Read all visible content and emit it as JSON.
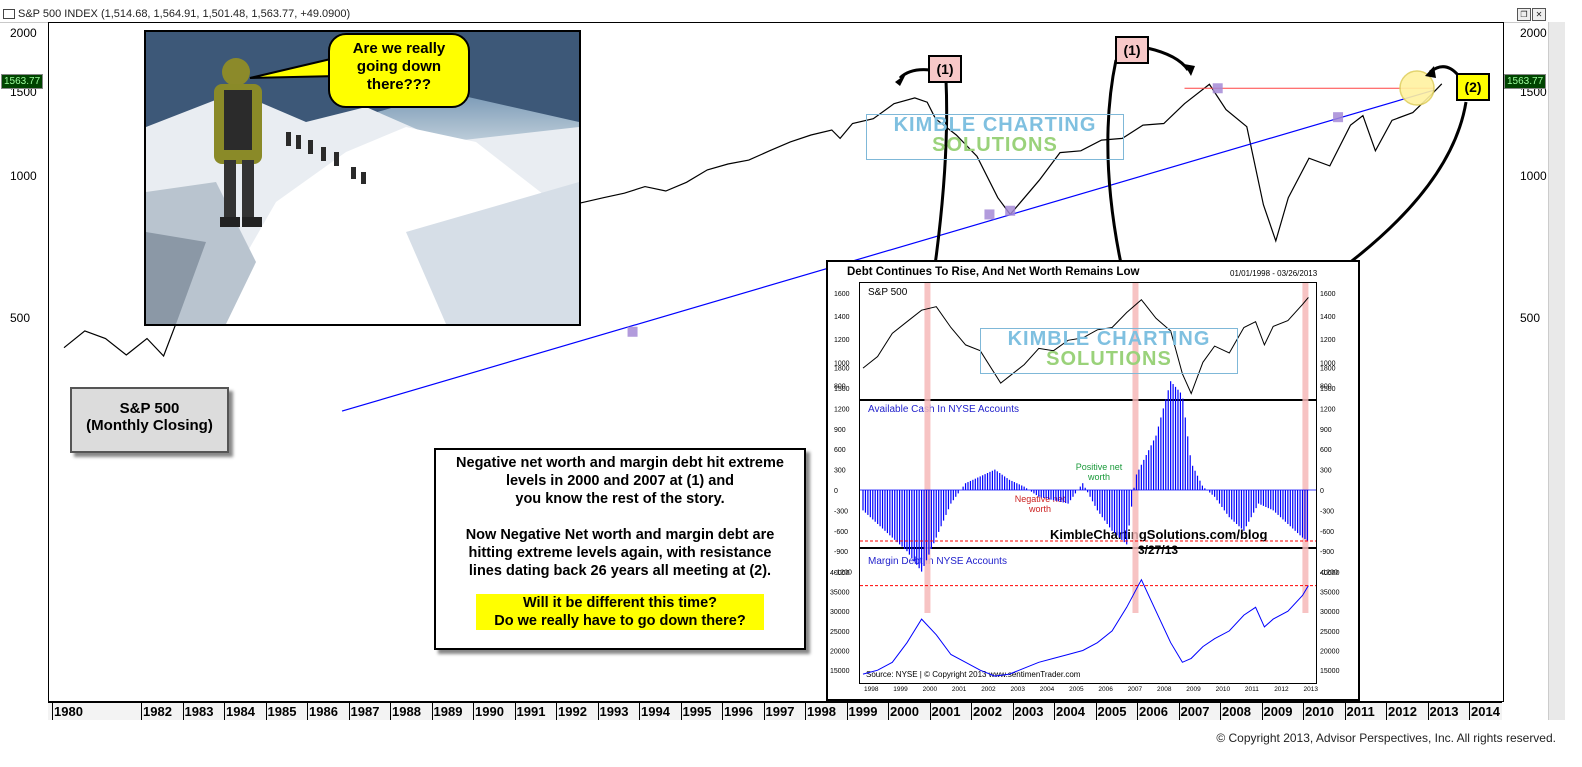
{
  "window": {
    "title": "S&P 500 INDEX (1,514.68, 1,564.91, 1,501.48, 1,563.77, +49.0900)",
    "last_price": "1563.77",
    "buttons": [
      "restore-icon",
      "close-icon"
    ]
  },
  "chart_data": [
    {
      "type": "line",
      "title": "",
      "series": [
        {
          "name": "",
          "values": [
            [
              1980.0,
              435
            ],
            [
              1980.5,
              472
            ],
            [
              1981.0,
              455
            ],
            [
              1981.5,
              420
            ],
            [
              1982.0,
              455
            ],
            [
              1982.4,
              418
            ],
            [
              1982.7,
              490
            ],
            [
              1983.0,
              520
            ],
            [
              1983.5,
              545
            ],
            [
              1984.0,
              520
            ],
            [
              1984.5,
              520
            ],
            [
              1985.0,
              560
            ],
            [
              1985.5,
              600
            ],
            [
              1986.0,
              640
            ],
            [
              1986.5,
              680
            ],
            [
              1987.0,
              710
            ],
            [
              1987.6,
              720
            ],
            [
              1987.8,
              645
            ],
            [
              1988.0,
              660
            ],
            [
              1988.5,
              690
            ],
            [
              1989.0,
              700
            ],
            [
              1989.5,
              760
            ],
            [
              1990.0,
              770
            ],
            [
              1990.5,
              790
            ],
            [
              1990.8,
              720
            ],
            [
              1991.0,
              740
            ],
            [
              1991.5,
              800
            ],
            [
              1992.0,
              860
            ],
            [
              1992.5,
              880
            ],
            [
              1993.0,
              900
            ],
            [
              1993.5,
              920
            ],
            [
              1994.0,
              950
            ],
            [
              1994.5,
              930
            ],
            [
              1995.0,
              970
            ],
            [
              1995.5,
              1030
            ],
            [
              1996.0,
              1060
            ],
            [
              1996.5,
              1080
            ],
            [
              1997.0,
              1130
            ],
            [
              1997.5,
              1180
            ],
            [
              1998.0,
              1220
            ],
            [
              1998.5,
              1250
            ],
            [
              1998.7,
              1200
            ],
            [
              1999.0,
              1290
            ],
            [
              1999.5,
              1320
            ],
            [
              2000.0,
              1420
            ],
            [
              2000.5,
              1460
            ],
            [
              2000.8,
              1430
            ],
            [
              2001.0,
              1320
            ],
            [
              2001.5,
              1220
            ],
            [
              2002.0,
              1100
            ],
            [
              2002.5,
              900
            ],
            [
              2002.8,
              830
            ],
            [
              2003.0,
              870
            ],
            [
              2003.5,
              980
            ],
            [
              2004.0,
              1120
            ],
            [
              2004.5,
              1130
            ],
            [
              2005.0,
              1190
            ],
            [
              2005.5,
              1200
            ],
            [
              2006.0,
              1280
            ],
            [
              2006.5,
              1290
            ],
            [
              2007.0,
              1420
            ],
            [
              2007.6,
              1560
            ],
            [
              2008.0,
              1380
            ],
            [
              2008.5,
              1270
            ],
            [
              2008.9,
              870
            ],
            [
              2009.2,
              730
            ],
            [
              2009.5,
              900
            ],
            [
              2010.0,
              1090
            ],
            [
              2010.5,
              1050
            ],
            [
              2011.0,
              1280
            ],
            [
              2011.3,
              1340
            ],
            [
              2011.6,
              1130
            ],
            [
              2012.0,
              1310
            ],
            [
              2012.5,
              1360
            ],
            [
              2013.0,
              1500
            ],
            [
              2013.2,
              1563.77
            ]
          ]
        },
        {
          "name": "",
          "values": [
            [
              1986.7,
              320
            ],
            [
              2013.0,
              1515
            ]
          ]
        }
      ],
      "xlabel": "",
      "ylabel": "",
      "scale": "log",
      "x_tick_labels": [
        "1980",
        "1982",
        "1983",
        "1984",
        "1985",
        "1986",
        "1987",
        "1988",
        "1989",
        "1990",
        "1991",
        "1992",
        "1993",
        "1994",
        "1995",
        "1996",
        "1997",
        "1998",
        "1999",
        "2000",
        "2001",
        "2002",
        "2003",
        "2004",
        "2005",
        "2006",
        "2007",
        "2008",
        "2009",
        "2010",
        "2011",
        "2012",
        "2013",
        "2014"
      ],
      "y_tick_labels": [
        "2000",
        "1500",
        "1000",
        "500"
      ],
      "grid": false,
      "legend": "none",
      "colors": {
        "price": "#000000",
        "trendline": "#0000ff",
        "resistance": "#ff4444"
      }
    },
    {
      "type": "line",
      "title": "Debt Continues To Rise, And Net Worth Remains Low",
      "date_range": "01/01/1998 - 03/26/2013",
      "panels": [
        {
          "label": "S&P 500",
          "y_tick_labels": [
            "1600",
            "1400",
            "1200",
            "1000",
            "800"
          ],
          "values": [
            [
              1998.0,
              950
            ],
            [
              1998.5,
              1050
            ],
            [
              1999.0,
              1250
            ],
            [
              1999.5,
              1350
            ],
            [
              2000.0,
              1450
            ],
            [
              2000.5,
              1480
            ],
            [
              2001.0,
              1300
            ],
            [
              2001.5,
              1150
            ],
            [
              2002.0,
              1100
            ],
            [
              2002.7,
              820
            ],
            [
              2003.0,
              880
            ],
            [
              2003.5,
              980
            ],
            [
              2004.0,
              1120
            ],
            [
              2004.5,
              1100
            ],
            [
              2005.0,
              1190
            ],
            [
              2005.5,
              1210
            ],
            [
              2006.0,
              1280
            ],
            [
              2006.5,
              1300
            ],
            [
              2007.0,
              1430
            ],
            [
              2007.5,
              1540
            ],
            [
              2008.0,
              1380
            ],
            [
              2008.5,
              1270
            ],
            [
              2008.9,
              900
            ],
            [
              2009.2,
              730
            ],
            [
              2009.6,
              1000
            ],
            [
              2010.0,
              1140
            ],
            [
              2010.5,
              1080
            ],
            [
              2011.0,
              1300
            ],
            [
              2011.4,
              1350
            ],
            [
              2011.7,
              1150
            ],
            [
              2012.0,
              1310
            ],
            [
              2012.5,
              1360
            ],
            [
              2013.0,
              1500
            ],
            [
              2013.2,
              1560
            ]
          ]
        },
        {
          "label": "Available Cash In NYSE Accounts",
          "y_tick_labels": [
            "1800",
            "1500",
            "1200",
            "900",
            "600",
            "300",
            "0",
            "-300",
            "-600",
            "-900",
            "-1200"
          ],
          "annotations": [
            "Positive net worth",
            "Negative net worth"
          ],
          "values": [
            [
              1998.0,
              -300
            ],
            [
              1998.5,
              -500
            ],
            [
              1999.0,
              -700
            ],
            [
              1999.5,
              -900
            ],
            [
              2000.0,
              -1200
            ],
            [
              2000.5,
              -700
            ],
            [
              2001.0,
              -200
            ],
            [
              2001.5,
              100
            ],
            [
              2002.0,
              200
            ],
            [
              2002.5,
              300
            ],
            [
              2003.0,
              150
            ],
            [
              2003.5,
              50
            ],
            [
              2004.0,
              -100
            ],
            [
              2004.5,
              -150
            ],
            [
              2005.0,
              -200
            ],
            [
              2005.5,
              100
            ],
            [
              2006.0,
              -300
            ],
            [
              2006.5,
              -600
            ],
            [
              2007.0,
              -800
            ],
            [
              2007.3,
              200
            ],
            [
              2008.0,
              800
            ],
            [
              2008.5,
              1600
            ],
            [
              2008.9,
              1400
            ],
            [
              2009.2,
              400
            ],
            [
              2009.6,
              50
            ],
            [
              2010.0,
              -100
            ],
            [
              2010.5,
              -400
            ],
            [
              2011.0,
              -600
            ],
            [
              2011.5,
              -200
            ],
            [
              2012.0,
              -300
            ],
            [
              2012.5,
              -500
            ],
            [
              2013.0,
              -700
            ],
            [
              2013.2,
              -750
            ]
          ]
        },
        {
          "label": "Margin Debt In NYSE Accounts",
          "y_tick_labels": [
            "40000",
            "35000",
            "30000",
            "25000",
            "20000",
            "15000"
          ],
          "values": [
            [
              1998.0,
              14000
            ],
            [
              1998.5,
              15000
            ],
            [
              1999.0,
              17000
            ],
            [
              1999.5,
              22000
            ],
            [
              2000.0,
              28000
            ],
            [
              2000.5,
              24000
            ],
            [
              2001.0,
              19000
            ],
            [
              2001.5,
              17000
            ],
            [
              2002.0,
              15000
            ],
            [
              2002.5,
              13500
            ],
            [
              2003.0,
              14000
            ],
            [
              2003.5,
              15500
            ],
            [
              2004.0,
              17000
            ],
            [
              2004.5,
              18000
            ],
            [
              2005.0,
              19000
            ],
            [
              2005.5,
              20000
            ],
            [
              2006.0,
              22000
            ],
            [
              2006.5,
              25000
            ],
            [
              2007.0,
              31000
            ],
            [
              2007.5,
              38000
            ],
            [
              2008.0,
              30000
            ],
            [
              2008.5,
              22000
            ],
            [
              2008.9,
              17000
            ],
            [
              2009.2,
              18000
            ],
            [
              2009.6,
              21000
            ],
            [
              2010.0,
              23000
            ],
            [
              2010.5,
              25000
            ],
            [
              2011.0,
              29000
            ],
            [
              2011.4,
              31000
            ],
            [
              2011.7,
              26000
            ],
            [
              2012.0,
              28000
            ],
            [
              2012.5,
              30000
            ],
            [
              2013.0,
              34000
            ],
            [
              2013.2,
              36500
            ]
          ]
        }
      ],
      "x_tick_labels": [
        "1998",
        "1999",
        "2000",
        "2001",
        "2002",
        "2003",
        "2004",
        "2005",
        "2006",
        "2007",
        "2008",
        "2009",
        "2010",
        "2011",
        "2012",
        "2013"
      ],
      "colors": {
        "price": "#000000",
        "cash": "#0000ff",
        "margin": "#0000ff",
        "extreme": "#ff0000",
        "highlight": "#f6b8b8"
      }
    }
  ],
  "callout": {
    "text_lines": [
      "Are we really",
      "going down",
      "there???"
    ]
  },
  "sp_label": {
    "line1": "S&P 500",
    "line2": "(Monthly Closing)"
  },
  "note": {
    "p1_lines": [
      "Negative net worth and margin debt hit extreme",
      "levels in 2000 and 2007 at (1) and",
      "you know the rest of the story."
    ],
    "p2_lines": [
      "Now Negative Net worth and margin debt are",
      "hitting extreme levels again, with resistance",
      "lines dating back 26 years all  meeting at (2)."
    ],
    "highlight_lines": [
      "Will it be different this time?",
      "Do we really have to go down there?"
    ]
  },
  "markers": {
    "one": "(1)",
    "two": "(2)"
  },
  "watermark": {
    "line1": "KIMBLE CHARTING",
    "line2": "SOLUTIONS"
  },
  "inset_notes": {
    "blog": "KimbleChartingSolutions.com/blog",
    "date": "3/27/13",
    "source": "Source:  NYSE   |  © Copyright 2013   www.sentimenTrader.com"
  },
  "copyright": "© Copyright 2013, Advisor Perspectives, Inc. All rights reserved."
}
